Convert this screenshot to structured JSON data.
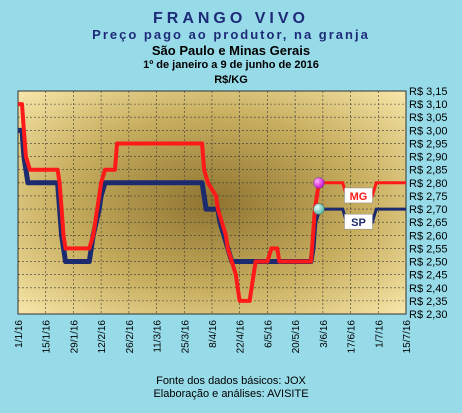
{
  "chart_data": {
    "type": "line",
    "title": "FRANGO VIVO",
    "subtitle_lines": [
      "Preço pago ao produtor, na granja",
      "São Paulo e Minas Gerais",
      "1º de janeiro a 9 de junho de 2016",
      "R$/KG"
    ],
    "y_axis": {
      "min": 2.3,
      "max": 3.15,
      "ticks": [
        3.15,
        3.1,
        3.05,
        3.0,
        2.95,
        2.9,
        2.85,
        2.8,
        2.75,
        2.7,
        2.65,
        2.6,
        2.55,
        2.5,
        2.45,
        2.4,
        2.35,
        2.3
      ],
      "tick_labels": [
        "R$ 3,15",
        "R$ 3,10",
        "R$ 3,05",
        "R$ 3,00",
        "R$ 2,95",
        "R$ 2,90",
        "R$ 2,85",
        "R$ 2,80",
        "R$ 2,75",
        "R$ 2,70",
        "R$ 2,65",
        "R$ 2,60",
        "R$ 2,55",
        "R$ 2,50",
        "R$ 2,45",
        "R$ 2,40",
        "R$ 2,35",
        "R$ 2,30"
      ],
      "position": "right"
    },
    "x_axis": {
      "ticks": [
        "1/1/16",
        "15/1/16",
        "29/1/16",
        "12/2/16",
        "26/2/16",
        "11/3/16",
        "25/3/16",
        "8/4/16",
        "22/4/16",
        "6/5/16",
        "20/5/16",
        "3/6/16",
        "17/6/16",
        "1/7/16",
        "15/7/16"
      ],
      "tick_days": [
        0,
        14,
        28,
        42,
        56,
        70,
        84,
        98,
        112,
        126,
        140,
        154,
        168,
        182,
        196
      ],
      "range_days": [
        0,
        196
      ]
    },
    "grid": true,
    "series": [
      {
        "name": "MG",
        "color": "#ff1a1a",
        "points": [
          [
            0,
            3.1
          ],
          [
            2,
            3.1
          ],
          [
            3,
            3.0
          ],
          [
            4,
            2.9
          ],
          [
            6,
            2.85
          ],
          [
            9,
            2.85
          ],
          [
            20,
            2.85
          ],
          [
            21,
            2.8
          ],
          [
            22,
            2.7
          ],
          [
            23,
            2.6
          ],
          [
            24,
            2.55
          ],
          [
            29,
            2.55
          ],
          [
            36,
            2.55
          ],
          [
            38,
            2.6
          ],
          [
            40,
            2.7
          ],
          [
            41,
            2.75
          ],
          [
            42,
            2.8
          ],
          [
            44,
            2.85
          ],
          [
            46,
            2.85
          ],
          [
            49,
            2.85
          ],
          [
            50,
            2.95
          ],
          [
            73,
            2.95
          ],
          [
            84,
            2.95
          ],
          [
            93,
            2.95
          ],
          [
            94,
            2.85
          ],
          [
            96,
            2.8
          ],
          [
            100,
            2.75
          ],
          [
            101,
            2.7
          ],
          [
            103,
            2.65
          ],
          [
            105,
            2.6
          ],
          [
            106,
            2.55
          ],
          [
            108,
            2.5
          ],
          [
            110,
            2.45
          ],
          [
            111,
            2.4
          ],
          [
            112,
            2.35
          ],
          [
            117,
            2.35
          ],
          [
            119,
            2.45
          ],
          [
            120,
            2.5
          ],
          [
            126,
            2.5
          ],
          [
            128,
            2.55
          ],
          [
            131,
            2.55
          ],
          [
            132,
            2.5
          ],
          [
            140,
            2.5
          ],
          [
            148,
            2.5
          ],
          [
            149,
            2.6
          ],
          [
            150,
            2.7
          ],
          [
            152,
            2.8
          ]
        ],
        "projection": [
          [
            152,
            2.8
          ],
          [
            164,
            2.8
          ],
          [
            166,
            2.75
          ],
          [
            179,
            2.75
          ],
          [
            181,
            2.8
          ],
          [
            196,
            2.8
          ]
        ],
        "marker_day": 152,
        "label": "MG"
      },
      {
        "name": "SP",
        "color": "#1c2a6e",
        "points": [
          [
            0,
            3.0
          ],
          [
            2,
            3.0
          ],
          [
            3,
            2.9
          ],
          [
            5,
            2.8
          ],
          [
            9,
            2.8
          ],
          [
            20,
            2.8
          ],
          [
            21,
            2.7
          ],
          [
            22,
            2.6
          ],
          [
            24,
            2.5
          ],
          [
            36,
            2.5
          ],
          [
            38,
            2.6
          ],
          [
            41,
            2.7
          ],
          [
            42,
            2.75
          ],
          [
            44,
            2.8
          ],
          [
            57,
            2.8
          ],
          [
            73,
            2.8
          ],
          [
            93,
            2.8
          ],
          [
            95,
            2.7
          ],
          [
            101,
            2.7
          ],
          [
            102,
            2.65
          ],
          [
            104,
            2.6
          ],
          [
            106,
            2.55
          ],
          [
            108,
            2.5
          ],
          [
            148,
            2.5
          ],
          [
            149,
            2.55
          ],
          [
            150,
            2.65
          ],
          [
            152,
            2.7
          ]
        ],
        "projection": [
          [
            152,
            2.7
          ],
          [
            164,
            2.7
          ],
          [
            166,
            2.65
          ],
          [
            179,
            2.65
          ],
          [
            181,
            2.7
          ],
          [
            196,
            2.7
          ]
        ],
        "marker_day": 152,
        "label": "SP"
      }
    ],
    "colors": {
      "background": "#97dbe9",
      "plot_outer": "#f6e6a8",
      "plot_center": "#8e7430",
      "label_box_bg": "#ffffff"
    }
  },
  "footer": {
    "line1": "Fonte dos dados básicos: JOX",
    "line2": "Elaboração e análises: AVISITE"
  }
}
